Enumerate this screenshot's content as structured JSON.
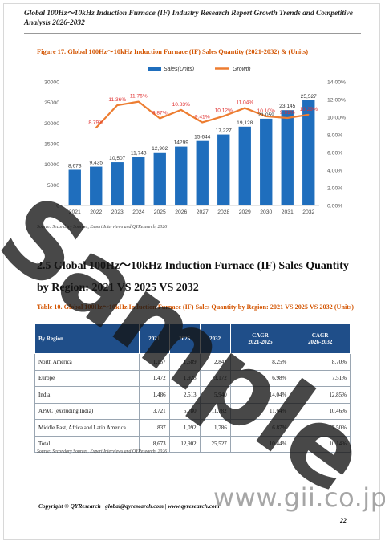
{
  "header": {
    "title": "Global 100Hz～10kHz Induction Furnace (IF) Industry Research Report Growth Trends and Competitive Analysis 2026-2032"
  },
  "figure": {
    "caption": "Figure 17.   Global 100Hz～10kHz Induction Furnace (IF) Sales Quantity (2021-2032) & (Units)",
    "source": "Source: Secondary Sources, Expert Interviews and QYResearch, 2026"
  },
  "chart_data": {
    "type": "bar",
    "categories": [
      "2021",
      "2022",
      "2023",
      "2024",
      "2025",
      "2026",
      "2027",
      "2028",
      "2029",
      "2030",
      "2031",
      "2032"
    ],
    "series": [
      {
        "name": "Sales(Units)",
        "type": "bar",
        "axis": "left",
        "values": [
          8673,
          9435,
          10507,
          11743,
          12902,
          14299,
          15644,
          17227,
          19128,
          21059,
          23145,
          25527
        ],
        "labels": [
          "8,673",
          "9,435",
          "10,507",
          "11,743",
          "12,902",
          "14299",
          "15,644",
          "17,227",
          "19,128",
          "21,059",
          "23,145",
          "25,527"
        ]
      },
      {
        "name": "Growth",
        "type": "line",
        "axis": "right",
        "values": [
          null,
          8.79,
          11.36,
          11.76,
          9.87,
          10.83,
          9.41,
          10.12,
          11.04,
          10.1,
          9.91,
          10.29
        ],
        "labels": [
          "",
          "8.79%",
          "11.36%",
          "11.76%",
          "9.87%",
          "10.83%",
          "9.41%",
          "10.12%",
          "11.04%",
          "10.10%",
          "9.91%",
          "10.29%"
        ]
      }
    ],
    "y_left": {
      "range": [
        0,
        30000
      ],
      "ticks": [
        "0",
        "5000",
        "10000",
        "15000",
        "20000",
        "25000",
        "30000"
      ]
    },
    "y_right": {
      "range": [
        0,
        14
      ],
      "ticks": [
        "0.00%",
        "2.00%",
        "4.00%",
        "6.00%",
        "8.00%",
        "10.00%",
        "12.00%",
        "14.00%"
      ]
    },
    "legend": "top-center",
    "grid": false,
    "colors": {
      "bar": "#1f6ebd",
      "line": "#ed7d31",
      "growth_label": "#e03030"
    }
  },
  "section": {
    "title": "2.5  Global 100Hz～10kHz Induction Furnace (IF) Sales Quantity by Region: 2021 VS 2025 VS 2032"
  },
  "table": {
    "caption": "Table 10.   Global 100Hz～10kHz Induction Furnace (IF) Sales Quantity by Region: 2021 VS 2025 VS 2032 (Units)",
    "headers": {
      "region": "By Region",
      "y2021": "2021",
      "y2025": "2025",
      "y2032": "2032",
      "cagr1": "CAGR",
      "cagr1_sub": "2021-2025",
      "cagr2": "CAGR",
      "cagr2_sub": "2026-2032"
    },
    "rows": [
      {
        "region": "North America",
        "v2021": "1,157",
        "v2025": "1,589",
        "v2032": "2,847",
        "c1": "8.25%",
        "c2": "8.70%"
      },
      {
        "region": "Europe",
        "v2021": "1,472",
        "v2025": "1,928",
        "v2032": "3,172",
        "c1": "6.98%",
        "c2": "7.51%"
      },
      {
        "region": "India",
        "v2021": "1,486",
        "v2025": "2,513",
        "v2032": "5,940",
        "c1": "14.04%",
        "c2": "12.85%"
      },
      {
        "region": "APAC (excluding India)",
        "v2021": "3,721",
        "v2025": "5,780",
        "v2032": "11,782",
        "c1": "11.64%",
        "c2": "10.46%"
      },
      {
        "region": "Middle East, Africa and Latin America",
        "v2021": "837",
        "v2025": "1,092",
        "v2032": "1,786",
        "c1": "6.87%",
        "c2": "7.50%"
      },
      {
        "region": "Total",
        "v2021": "8,673",
        "v2025": "12,902",
        "v2032": "25,527",
        "c1": "10.44%",
        "c2": "10.14%"
      }
    ],
    "source": "Source: Secondary Sources, Expert Interviews and QYResearch, 2026"
  },
  "watermark": {
    "sample": "Sample",
    "site": "www.gii.co.jp"
  },
  "footer": {
    "copyright": "Copyright © QYResearch | global@qyresearch.com | www.qyresearch.com",
    "page": "22"
  }
}
